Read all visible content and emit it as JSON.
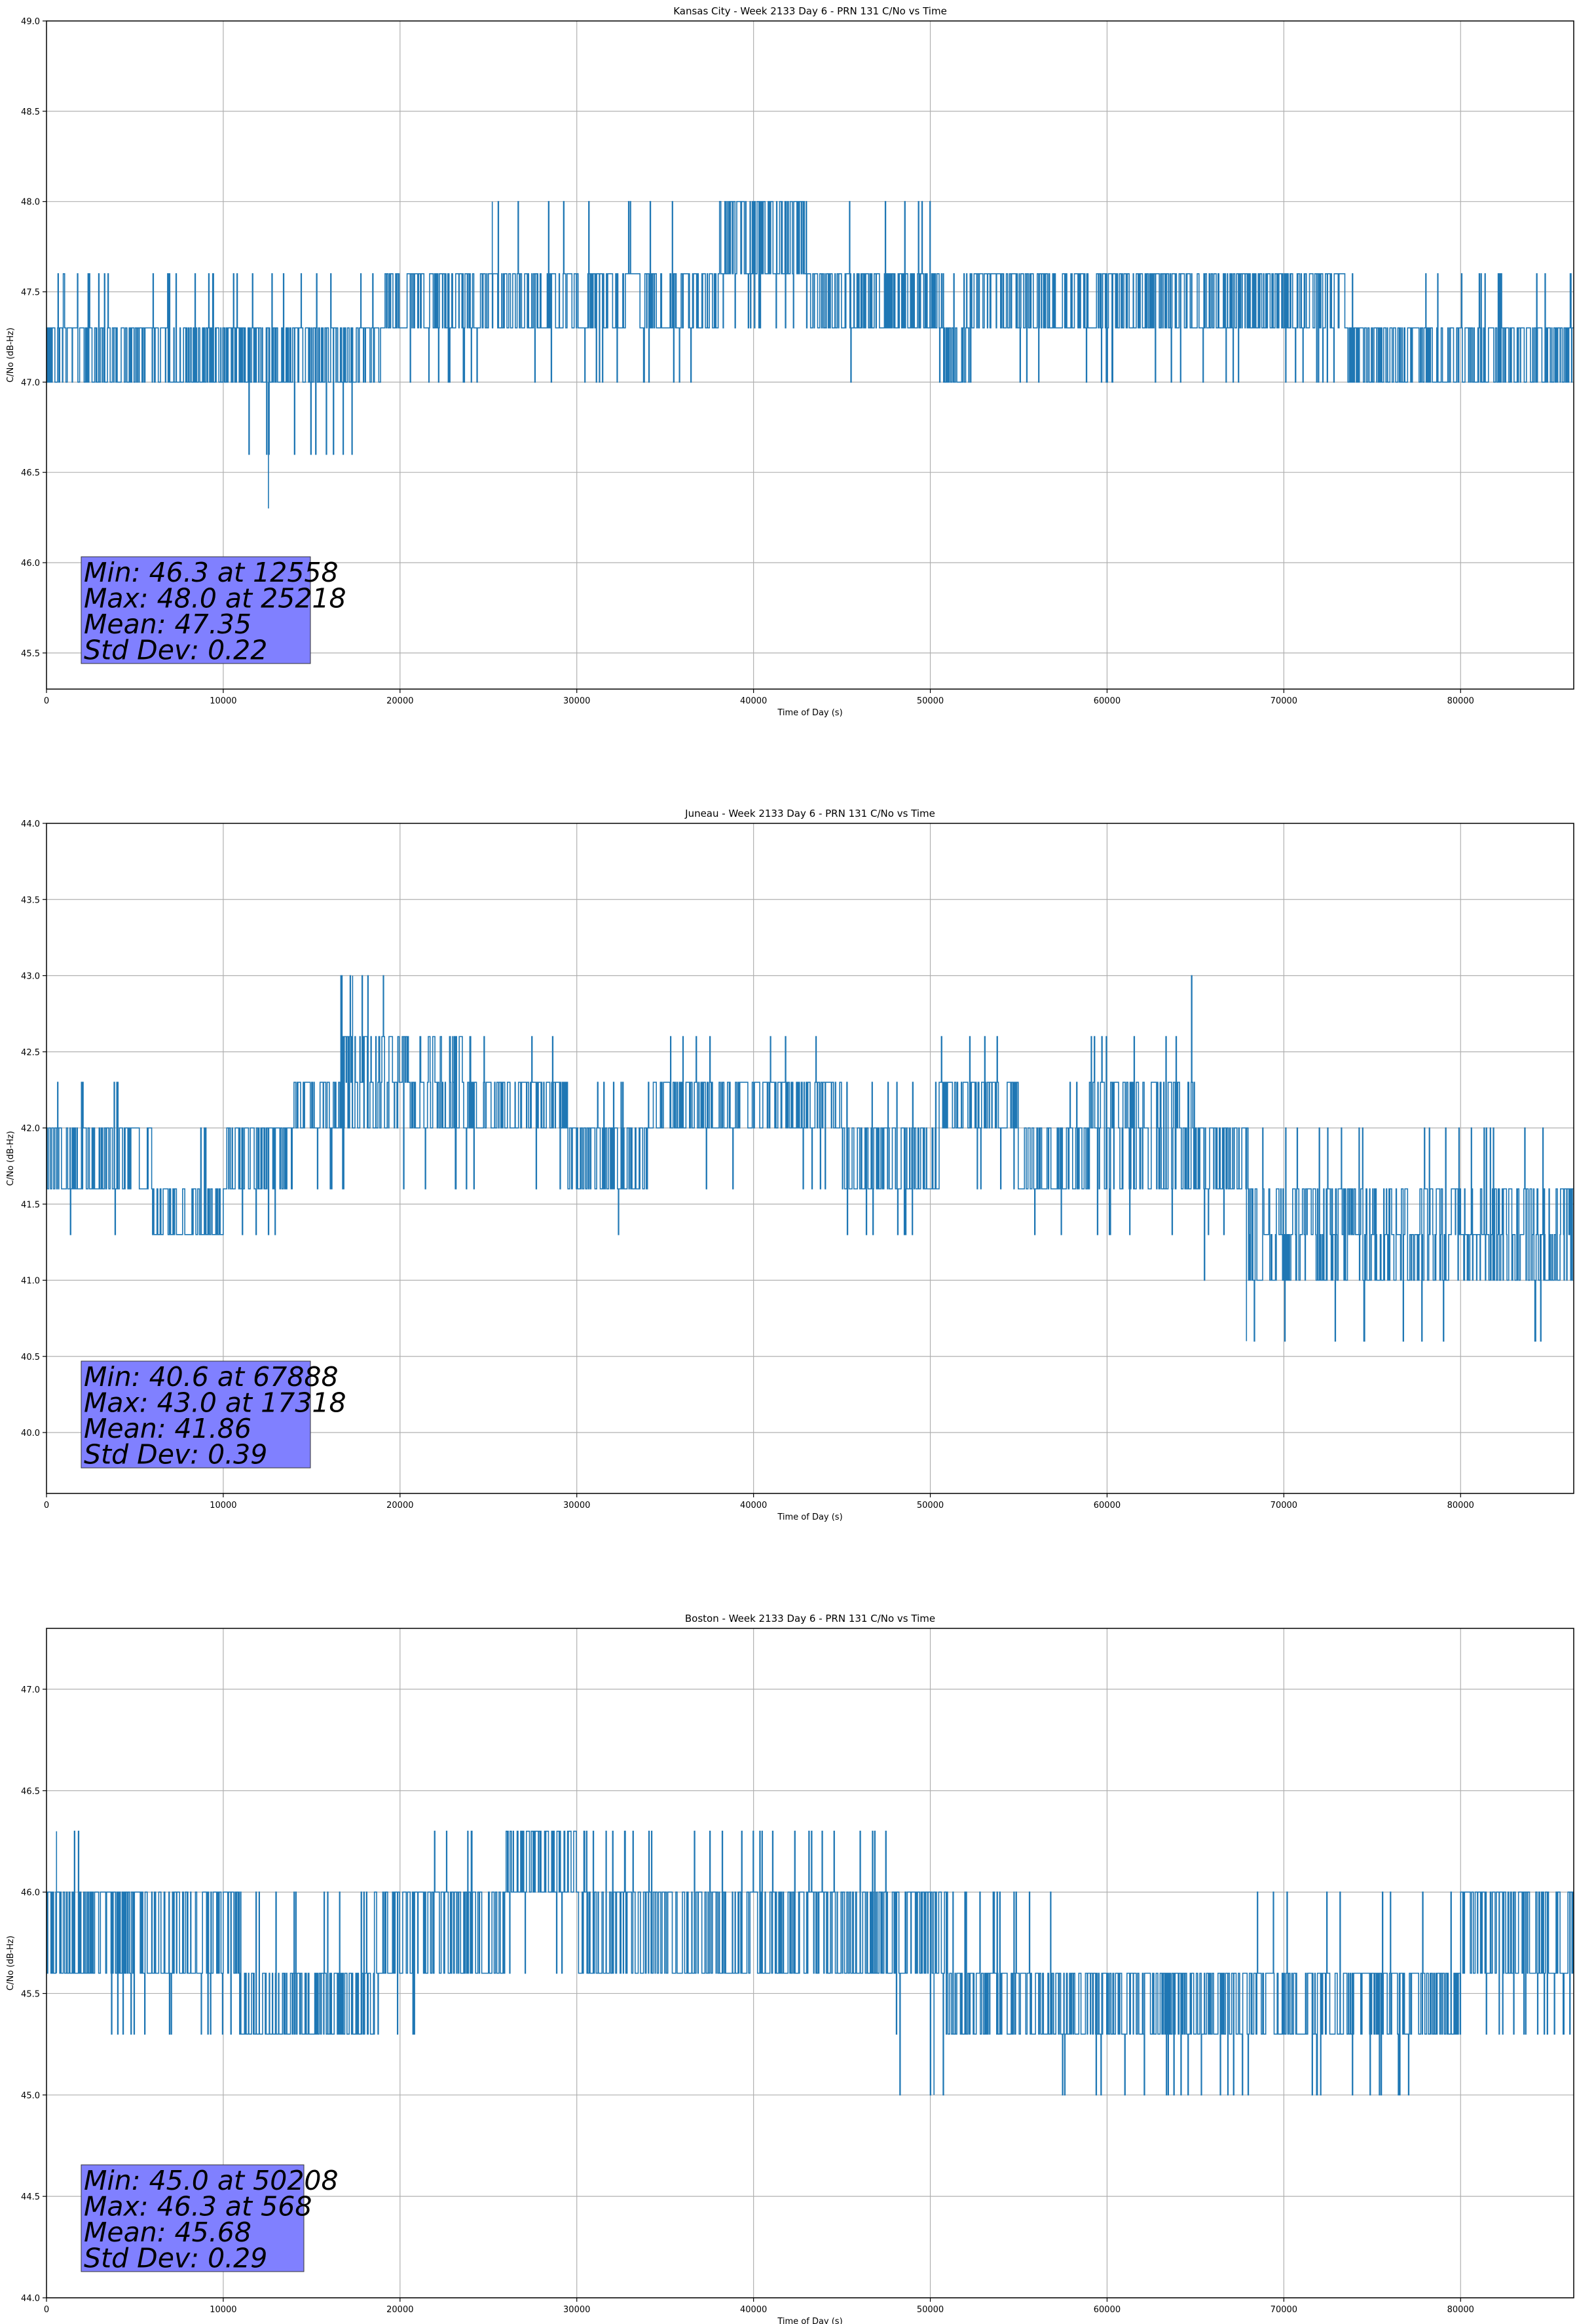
{
  "chart_data": [
    {
      "type": "line",
      "title": "Kansas City - Week 2133 Day 6 - PRN 131 C/No vs Time",
      "xlabel": "Time of Day (s)",
      "ylabel": "C/No (dB-Hz)",
      "xlim": [
        0,
        86400
      ],
      "ylim": [
        45.3,
        49.0
      ],
      "xticks": [
        0,
        10000,
        20000,
        30000,
        40000,
        50000,
        60000,
        70000,
        80000
      ],
      "yticks": [
        45.5,
        46.0,
        46.5,
        47.0,
        47.5,
        48.0,
        48.5,
        49.0
      ],
      "grid": true,
      "series_color": "#1f77b4",
      "stats_box": {
        "lines": [
          "Min: 46.3 at 12558",
          "Max: 48.0 at 25218",
          "Mean: 47.35",
          "Std Dev: 0.22"
        ],
        "facecolor": "#8080ff"
      },
      "segments": [
        {
          "from": 0,
          "to": 8000,
          "levels": [
            47.0,
            47.3
          ],
          "spikes": [
            47.6
          ]
        },
        {
          "from": 8000,
          "to": 10000,
          "levels": [
            47.0,
            47.3
          ],
          "spikes": [
            47.6
          ]
        },
        {
          "from": 10000,
          "to": 15000,
          "levels": [
            47.0,
            47.3
          ],
          "spikes": [
            46.6,
            47.6
          ]
        },
        {
          "from": 15000,
          "to": 19000,
          "levels": [
            47.0,
            47.3
          ],
          "spikes": [
            47.6,
            46.6
          ]
        },
        {
          "from": 19000,
          "to": 25000,
          "levels": [
            47.3,
            47.6
          ],
          "spikes": [
            47.0
          ]
        },
        {
          "from": 25000,
          "to": 38000,
          "levels": [
            47.3,
            47.6
          ],
          "spikes": [
            48.0,
            47.0
          ]
        },
        {
          "from": 38000,
          "to": 43000,
          "levels": [
            47.6,
            48.0
          ],
          "spikes": [
            47.3
          ]
        },
        {
          "from": 43000,
          "to": 50500,
          "levels": [
            47.3,
            47.6
          ],
          "spikes": [
            48.0,
            47.0
          ]
        },
        {
          "from": 50500,
          "to": 52000,
          "levels": [
            47.0,
            47.3
          ],
          "spikes": [
            47.6
          ]
        },
        {
          "from": 52000,
          "to": 73500,
          "levels": [
            47.3,
            47.6
          ],
          "spikes": [
            47.0
          ]
        },
        {
          "from": 73500,
          "to": 86400,
          "levels": [
            47.0,
            47.3
          ],
          "spikes": [
            47.6
          ]
        }
      ],
      "points": [
        [
          12558,
          46.3
        ],
        [
          25218,
          48.0
        ]
      ]
    },
    {
      "type": "line",
      "title": "Juneau - Week 2133 Day 6 - PRN 131 C/No vs Time",
      "xlabel": "Time of Day (s)",
      "ylabel": "C/No (dB-Hz)",
      "xlim": [
        0,
        86400
      ],
      "ylim": [
        39.6,
        44.0
      ],
      "xticks": [
        0,
        10000,
        20000,
        30000,
        40000,
        50000,
        60000,
        70000,
        80000
      ],
      "yticks": [
        40.0,
        40.5,
        41.0,
        41.5,
        42.0,
        42.5,
        43.0,
        43.5,
        44.0
      ],
      "grid": true,
      "series_color": "#1f77b4",
      "stats_box": {
        "lines": [
          "Min: 40.6 at 67888",
          "Max: 43.0 at 17318",
          "Mean: 41.86",
          "Std Dev: 0.39"
        ],
        "facecolor": "#8080ff"
      },
      "segments": [
        {
          "from": 0,
          "to": 6000,
          "levels": [
            41.6,
            42.0
          ],
          "spikes": [
            41.3,
            42.3
          ]
        },
        {
          "from": 6000,
          "to": 10000,
          "levels": [
            41.3,
            41.6
          ],
          "spikes": [
            42.0
          ]
        },
        {
          "from": 10000,
          "to": 14000,
          "levels": [
            41.6,
            42.0
          ],
          "spikes": [
            41.3
          ]
        },
        {
          "from": 14000,
          "to": 16500,
          "levels": [
            42.0,
            42.3
          ],
          "spikes": [
            41.6
          ]
        },
        {
          "from": 16500,
          "to": 24000,
          "levels": [
            42.0,
            42.3,
            42.6
          ],
          "spikes": [
            43.0,
            41.6
          ]
        },
        {
          "from": 24000,
          "to": 29500,
          "levels": [
            42.0,
            42.3
          ],
          "spikes": [
            42.6,
            41.6
          ]
        },
        {
          "from": 29500,
          "to": 34000,
          "levels": [
            41.6,
            42.0
          ],
          "spikes": [
            42.3,
            41.3
          ]
        },
        {
          "from": 34000,
          "to": 45000,
          "levels": [
            42.0,
            42.3
          ],
          "spikes": [
            42.6,
            41.6
          ]
        },
        {
          "from": 45000,
          "to": 50500,
          "levels": [
            41.6,
            42.0
          ],
          "spikes": [
            42.3,
            41.3
          ]
        },
        {
          "from": 50500,
          "to": 55000,
          "levels": [
            42.0,
            42.3
          ],
          "spikes": [
            42.6,
            41.6
          ]
        },
        {
          "from": 55000,
          "to": 59000,
          "levels": [
            41.6,
            42.0
          ],
          "spikes": [
            42.3,
            41.3
          ]
        },
        {
          "from": 59000,
          "to": 65000,
          "levels": [
            41.6,
            42.0,
            42.3
          ],
          "spikes": [
            42.6,
            43.0,
            41.3
          ]
        },
        {
          "from": 65000,
          "to": 68000,
          "levels": [
            41.6,
            42.0
          ],
          "spikes": [
            41.3,
            41.0,
            42.3
          ]
        },
        {
          "from": 68000,
          "to": 77000,
          "levels": [
            41.0,
            41.3,
            41.6
          ],
          "spikes": [
            42.0,
            40.6
          ]
        },
        {
          "from": 77000,
          "to": 86400,
          "levels": [
            41.0,
            41.3,
            41.6
          ],
          "spikes": [
            40.6,
            42.0
          ]
        }
      ],
      "points": [
        [
          67888,
          40.6
        ],
        [
          17318,
          43.0
        ]
      ]
    },
    {
      "type": "line",
      "title": "Boston - Week 2133 Day 6 - PRN 131 C/No vs Time",
      "xlabel": "Time of Day (s)",
      "ylabel": "C/No (dB-Hz)",
      "xlim": [
        0,
        86400
      ],
      "ylim": [
        44.0,
        47.3
      ],
      "xticks": [
        0,
        10000,
        20000,
        30000,
        40000,
        50000,
        60000,
        70000,
        80000
      ],
      "yticks": [
        44.0,
        44.5,
        45.0,
        45.5,
        46.0,
        46.5,
        47.0
      ],
      "grid": true,
      "series_color": "#1f77b4",
      "stats_box": {
        "lines": [
          "Min: 45.0 at 50208",
          "Max: 46.3 at 568",
          "Mean: 45.68",
          "Std Dev: 0.29"
        ],
        "facecolor": "#8080ff"
      },
      "segments": [
        {
          "from": 0,
          "to": 2500,
          "levels": [
            45.6,
            46.0
          ],
          "spikes": [
            46.3
          ]
        },
        {
          "from": 2500,
          "to": 6000,
          "levels": [
            45.6,
            46.0
          ],
          "spikes": [
            45.3
          ]
        },
        {
          "from": 6000,
          "to": 11000,
          "levels": [
            45.6,
            46.0
          ],
          "spikes": [
            45.3
          ]
        },
        {
          "from": 11000,
          "to": 18500,
          "levels": [
            45.3,
            45.6
          ],
          "spikes": [
            46.0
          ]
        },
        {
          "from": 18500,
          "to": 21000,
          "levels": [
            45.6,
            46.0
          ],
          "spikes": [
            45.3
          ]
        },
        {
          "from": 21000,
          "to": 26000,
          "levels": [
            45.6,
            46.0
          ],
          "spikes": [
            46.3
          ]
        },
        {
          "from": 26000,
          "to": 30000,
          "levels": [
            46.0,
            46.3
          ],
          "spikes": [
            45.6
          ]
        },
        {
          "from": 30000,
          "to": 48000,
          "levels": [
            45.6,
            46.0
          ],
          "spikes": [
            46.3
          ]
        },
        {
          "from": 48000,
          "to": 51000,
          "levels": [
            45.6,
            46.0
          ],
          "spikes": [
            45.3,
            45.0
          ]
        },
        {
          "from": 51000,
          "to": 57000,
          "levels": [
            45.3,
            45.6
          ],
          "spikes": [
            46.0
          ]
        },
        {
          "from": 57000,
          "to": 67000,
          "levels": [
            45.3,
            45.6
          ],
          "spikes": [
            45.0
          ]
        },
        {
          "from": 67000,
          "to": 80000,
          "levels": [
            45.3,
            45.6
          ],
          "spikes": [
            46.0,
            45.0
          ]
        },
        {
          "from": 80000,
          "to": 86400,
          "levels": [
            45.6,
            46.0
          ],
          "spikes": [
            45.3
          ]
        }
      ],
      "points": [
        [
          50208,
          45.0
        ],
        [
          568,
          46.3
        ]
      ]
    }
  ]
}
